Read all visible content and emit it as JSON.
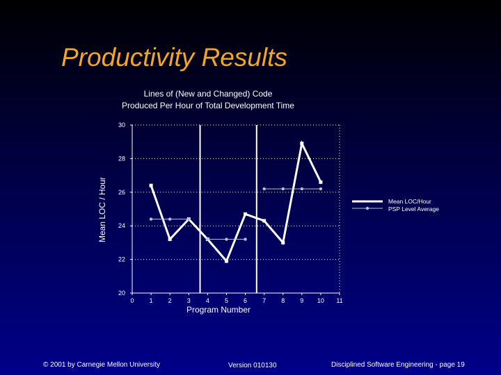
{
  "slide": {
    "title": "Productivity Results"
  },
  "chart_data": {
    "type": "line",
    "title_lines": [
      "Lines of (New and Changed) Code",
      "Produced Per Hour of Total Development Time"
    ],
    "xlabel": "Program Number",
    "ylabel": "Mean LOC / Hour",
    "xlim": [
      0,
      11
    ],
    "ylim": [
      20,
      30
    ],
    "x_ticks": [
      "0",
      "1",
      "2",
      "3",
      "4",
      "5",
      "6",
      "7",
      "8",
      "9",
      "10",
      "11"
    ],
    "y_ticks": [
      "20",
      "22",
      "24",
      "26",
      "28",
      "30"
    ],
    "y_tick_values": [
      20,
      22,
      24,
      26,
      28,
      30
    ],
    "legend_position": "right",
    "series": [
      {
        "name": "Mean LOC/Hour",
        "color": "#ffffff",
        "x": [
          1,
          2,
          3,
          4,
          5,
          6,
          7,
          8,
          9,
          10
        ],
        "values": [
          26.4,
          23.2,
          24.4,
          23.2,
          21.9,
          24.7,
          24.3,
          23.0,
          28.9,
          26.6
        ]
      },
      {
        "name": "PSP Level Average",
        "color": "#b8c0d8",
        "segments": [
          {
            "x": [
              1,
              2,
              3
            ],
            "values": [
              24.4,
              24.4,
              24.4
            ]
          },
          {
            "x": [
              4,
              5,
              6
            ],
            "values": [
              23.2,
              23.2,
              23.2
            ]
          },
          {
            "x": [
              7,
              8,
              9,
              10
            ],
            "values": [
              26.2,
              26.2,
              26.2,
              26.2
            ]
          }
        ]
      }
    ],
    "vertical_markers_x": [
      3.6,
      6.6
    ],
    "grid": "horizontal dotted"
  },
  "footer": {
    "left": "© 2001 by Carnegie Mellon University",
    "center": "Version 010130",
    "right": "Disciplined Software Engineering - page 19"
  }
}
